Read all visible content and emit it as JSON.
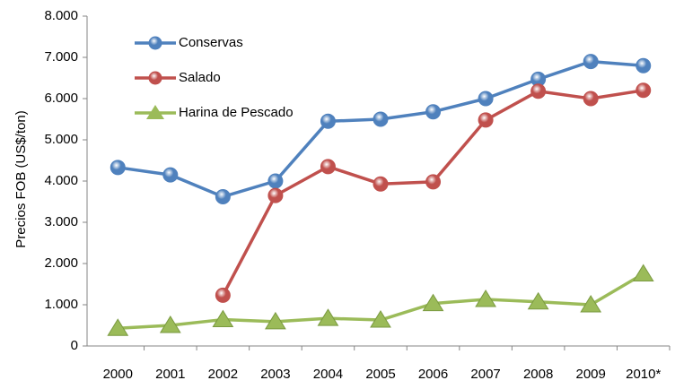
{
  "chart_data": {
    "type": "line",
    "y_label": "Precios FOB (US$/ton)",
    "categories": [
      "2000",
      "2001",
      "2002",
      "2003",
      "2004",
      "2005",
      "2006",
      "2007",
      "2008",
      "2009",
      "2010*"
    ],
    "series": [
      {
        "name": "Conservas",
        "color": "#4f81bd",
        "marker": "circle",
        "values": [
          4330,
          4150,
          3620,
          4000,
          5450,
          5500,
          5680,
          6000,
          6470,
          6900,
          6800
        ]
      },
      {
        "name": "Salado",
        "color": "#c0504d",
        "marker": "circle",
        "values": [
          null,
          null,
          1230,
          3650,
          4350,
          3930,
          3980,
          5480,
          6180,
          6000,
          6200
        ]
      },
      {
        "name": "Harina de Pescado",
        "color": "#9bbb59",
        "marker": "triangle",
        "values": [
          430,
          500,
          640,
          590,
          670,
          630,
          1030,
          1130,
          1070,
          1000,
          1750
        ]
      }
    ],
    "ylim": [
      0,
      8000
    ],
    "yticks": [
      0,
      {
        "value": 1000,
        "label": "1.000"
      },
      {
        "value": 2000,
        "label": "2.000"
      },
      {
        "value": 3000,
        "label": "3.000"
      },
      {
        "value": 4000,
        "label": "4.000"
      },
      {
        "value": 5000,
        "label": "5.000"
      },
      {
        "value": 6000,
        "label": "6.000"
      },
      {
        "value": 7000,
        "label": "7.000"
      },
      {
        "value": 8000,
        "label": "8.000"
      }
    ],
    "grid": false,
    "legend": "upper-left"
  }
}
